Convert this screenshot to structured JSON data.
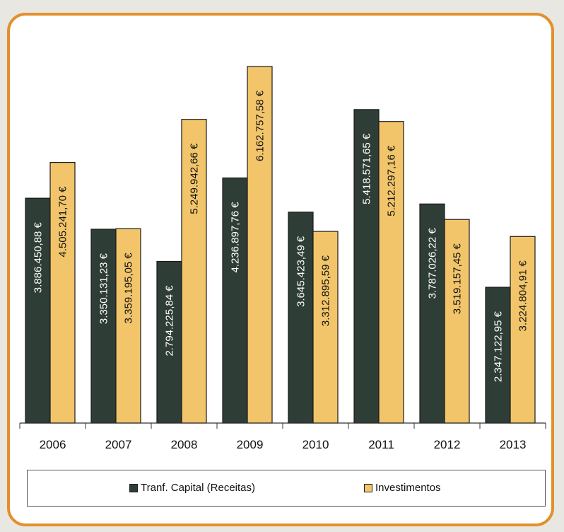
{
  "chart_data": {
    "type": "bar",
    "categories": [
      "2006",
      "2007",
      "2008",
      "2009",
      "2010",
      "2011",
      "2012",
      "2013"
    ],
    "series": [
      {
        "name": "Tranf. Capital (Receitas)",
        "color": "#2f3d37",
        "values": [
          3886450.88,
          3350131.23,
          2794225.84,
          4236897.76,
          3645423.49,
          5418571.65,
          3787026.22,
          2347122.95
        ],
        "labels": [
          "3.886.450,88 €",
          "3.350.131,23 €",
          "2.794.225,84 €",
          "4.236.897,76 €",
          "3.645.423,49 €",
          "5.418.571,65 €",
          "3.787.026,22 €",
          "2.347.122,95 €"
        ]
      },
      {
        "name": "Investimentos",
        "color": "#f2c56b",
        "values": [
          4505241.7,
          3359195.05,
          5249942.66,
          6162757.58,
          3312895.59,
          5212297.16,
          3519157.45,
          3224804.91
        ],
        "labels": [
          "4.505.241,70 €",
          "3.359.195,05 €",
          "5.249.942,66 €",
          "6.162.757,58 €",
          "3.312.895,59 €",
          "5.212.297,16 €",
          "3.519.157,45 €",
          "3.224.804,91 €"
        ]
      }
    ],
    "title": "",
    "xlabel": "",
    "ylabel": "",
    "ylim": [
      0,
      6600000
    ],
    "grid": false,
    "legend": "bottom"
  }
}
